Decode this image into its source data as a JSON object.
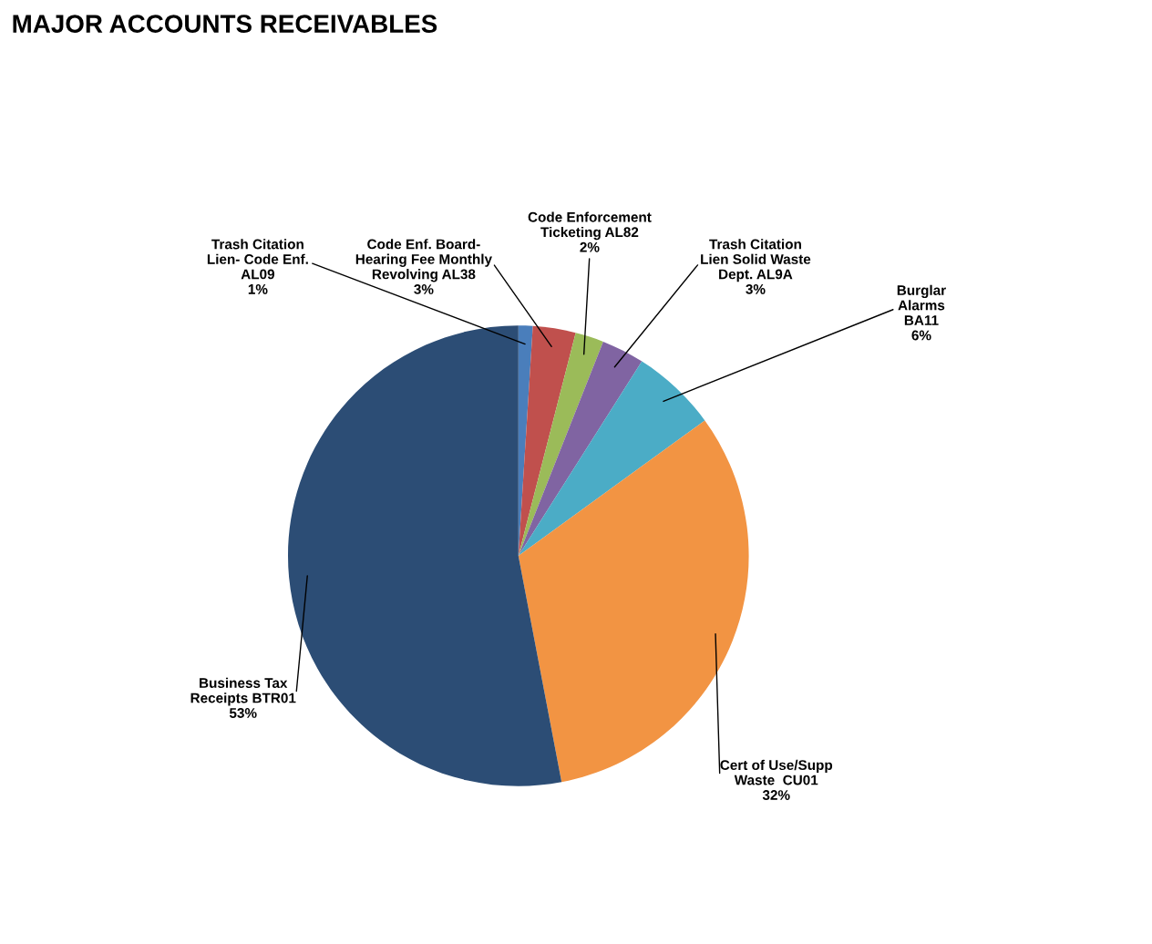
{
  "chart_data": {
    "type": "pie",
    "title": "MAJOR ACCOUNTS RECEIVABLES",
    "categories": [
      "Trash Citation\nLien- Code Enf.\nAL09",
      "Code Enf. Board-\nHearing Fee Monthly\nRevolving AL38",
      "Code Enforcement\nTicketing AL82",
      "Trash Citation\nLien Solid Waste\nDept. AL9A",
      "Burglar\nAlarms\nBA11",
      "Cert of Use/Supp\nWaste  CU01",
      "Business Tax\nReceipts BTR01"
    ],
    "values": [
      1,
      3,
      2,
      3,
      6,
      32,
      53
    ],
    "value_labels": [
      "1%",
      "3%",
      "2%",
      "3%",
      "6%",
      "32%",
      "53%"
    ],
    "colors": [
      "#4a7ebb",
      "#c0504d",
      "#9bbb59",
      "#8064a2",
      "#4bacc6",
      "#f29443",
      "#2c4d75"
    ]
  }
}
